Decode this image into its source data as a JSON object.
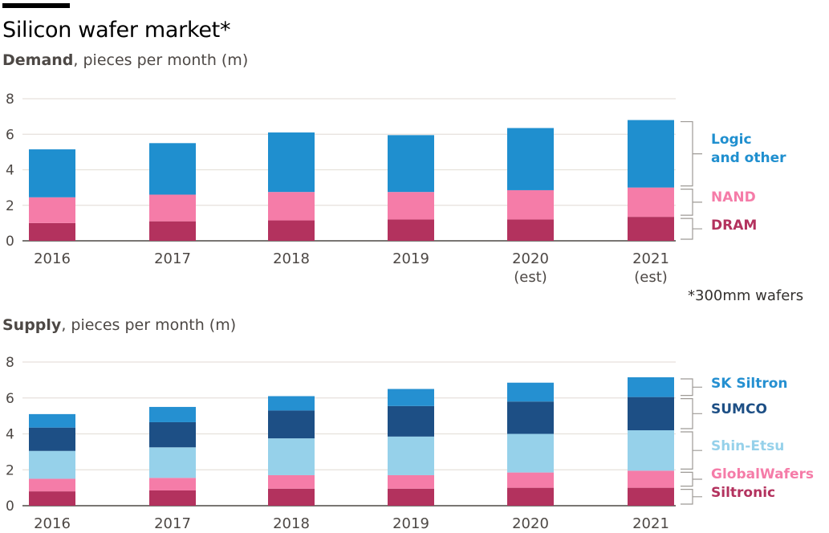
{
  "title": "Silicon wafer market*",
  "footnote": "*300mm wafers",
  "colors": {
    "logic": "#1f8fcf",
    "nand": "#f57ca8",
    "dram": "#b3325e",
    "sk_siltron": "#2590d1",
    "sumco": "#1d4f85",
    "shin_etsu": "#96d1ea",
    "globalwafers": "#f57ca8",
    "siltronic": "#b3325e",
    "grid": "#e6e1dc",
    "axis": "#4d4845",
    "bracket": "#9e9a96"
  },
  "chart_data": [
    {
      "type": "bar",
      "stacked": true,
      "subtitle_bold": "Demand",
      "subtitle_rest": ", pieces per month (m)",
      "categories": [
        "2016",
        "2017",
        "2018",
        "2019",
        "2020",
        "2021"
      ],
      "category_sublabels": [
        "",
        "",
        "",
        "",
        "(est)",
        "(est)"
      ],
      "yticks": [
        "0",
        "2",
        "4",
        "6",
        "8"
      ],
      "ylim": [
        0,
        8
      ],
      "grid": true,
      "legend_position": "right",
      "series": [
        {
          "name": "DRAM",
          "color_key": "dram",
          "values": [
            1.0,
            1.1,
            1.15,
            1.2,
            1.2,
            1.35
          ]
        },
        {
          "name": "NAND",
          "color_key": "nand",
          "values": [
            1.45,
            1.5,
            1.6,
            1.55,
            1.65,
            1.65
          ]
        },
        {
          "name": "Logic and other",
          "label_lines": [
            "Logic",
            "and other"
          ],
          "color_key": "logic",
          "values": [
            2.7,
            2.9,
            3.35,
            3.2,
            3.5,
            3.8
          ]
        }
      ]
    },
    {
      "type": "bar",
      "stacked": true,
      "subtitle_bold": "Supply",
      "subtitle_rest": ", pieces per month (m)",
      "categories": [
        "2016",
        "2017",
        "2018",
        "2019",
        "2020",
        "2021"
      ],
      "category_sublabels": [
        "",
        "",
        "",
        "",
        "",
        ""
      ],
      "yticks": [
        "0",
        "2",
        "4",
        "6",
        "8"
      ],
      "ylim": [
        0,
        8
      ],
      "grid": true,
      "legend_position": "right",
      "series": [
        {
          "name": "Siltronic",
          "color_key": "siltronic",
          "values": [
            0.8,
            0.85,
            0.95,
            0.95,
            1.0,
            1.0
          ]
        },
        {
          "name": "GlobalWafers",
          "color_key": "globalwafers",
          "values": [
            0.7,
            0.7,
            0.75,
            0.75,
            0.85,
            0.95
          ]
        },
        {
          "name": "Shin-Etsu",
          "color_key": "shin_etsu",
          "values": [
            1.55,
            1.7,
            2.05,
            2.15,
            2.15,
            2.25
          ]
        },
        {
          "name": "SUMCO",
          "color_key": "sumco",
          "values": [
            1.3,
            1.4,
            1.55,
            1.7,
            1.8,
            1.85
          ]
        },
        {
          "name": "SK Siltron",
          "color_key": "sk_siltron",
          "values": [
            0.75,
            0.85,
            0.8,
            0.95,
            1.05,
            1.1
          ]
        }
      ]
    }
  ]
}
